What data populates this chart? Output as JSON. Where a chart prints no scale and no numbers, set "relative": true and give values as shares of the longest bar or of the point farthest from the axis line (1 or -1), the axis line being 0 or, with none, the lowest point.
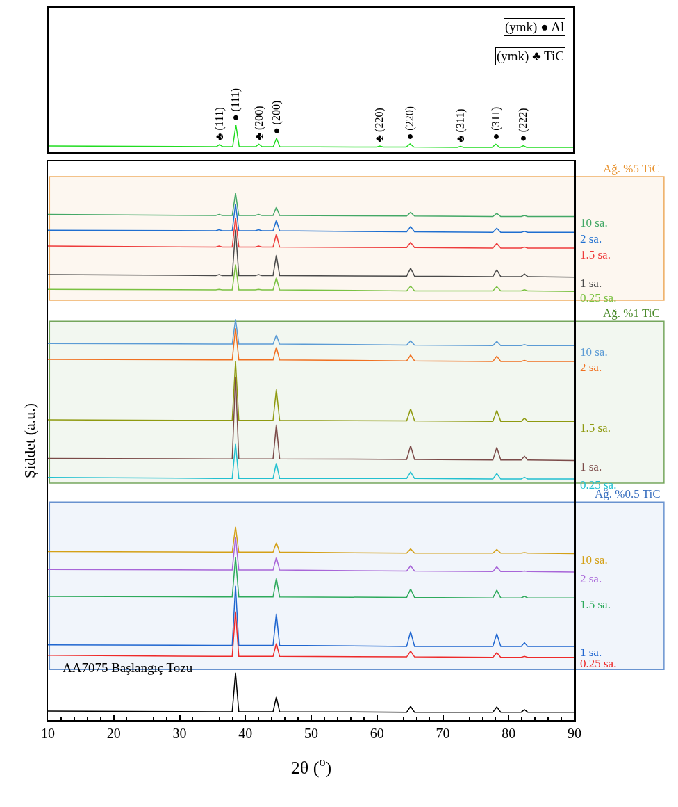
{
  "chart_data": [
    {
      "type": "line",
      "relative": true,
      "xlim": [
        10,
        90
      ],
      "x": [
        10,
        35.5,
        36,
        36.5,
        38,
        38.5,
        39,
        41.5,
        42,
        42.5,
        44.2,
        44.7,
        45.2,
        60,
        60.5,
        61,
        64.5,
        65.1,
        65.7,
        72.3,
        72.8,
        73.3,
        77.6,
        78.2,
        78.8,
        81.9,
        82.4,
        82.9,
        90
      ],
      "series": [
        {
          "color": "#22dd22",
          "values": [
            0.211,
            0.184,
            0.263,
            0.184,
            0.184,
            1.0,
            0.184,
            0.184,
            0.276,
            0.184,
            0.184,
            0.5,
            0.184,
            0.171,
            0.211,
            0.171,
            0.171,
            0.289,
            0.171,
            0.158,
            0.197,
            0.158,
            0.158,
            0.276,
            0.158,
            0.158,
            0.224,
            0.158,
            0.158
          ]
        }
      ],
      "annotations": [
        "(ymk) ● Al",
        "(ymk) ♣ TiC",
        {
          "text": "♣ (111)",
          "x": 36,
          "y": 0.263
        },
        {
          "text": "● (111)",
          "x": 38.5,
          "y": 1.0
        },
        {
          "text": "♣ (200)",
          "x": 42,
          "y": 0.276
        },
        {
          "text": "● (200)",
          "x": 44.7,
          "y": 0.5
        },
        {
          "text": "♣ (220)",
          "x": 60.5,
          "y": 0.211
        },
        {
          "text": "● (220)",
          "x": 65.1,
          "y": 0.289
        },
        {
          "text": "♣ (311)",
          "x": 72.8,
          "y": 0.197
        },
        {
          "text": "● (311)",
          "x": 78.2,
          "y": 0.276
        },
        {
          "text": "● (222)",
          "x": 82.4,
          "y": 0.224
        }
      ]
    },
    {
      "type": "line",
      "relative": true,
      "xlabel": "2θ ($^{o}$)",
      "ylabel": "Şiddet (a.u.)",
      "xlim": [
        10,
        90
      ],
      "xticks": [
        10,
        20,
        30,
        40,
        50,
        60,
        70,
        80,
        90
      ],
      "x": [
        10,
        35.5,
        36,
        36.5,
        38,
        38.5,
        39,
        41.5,
        42,
        42.5,
        44.2,
        44.7,
        45.2,
        64.5,
        65.1,
        65.7,
        77.6,
        78.2,
        78.8,
        81.9,
        82.4,
        82.9,
        90
      ],
      "series": [
        {
          "name": "10 sa.",
          "color": "#43a866",
          "values": [
            0.96,
            0.958,
            0.96,
            0.958,
            0.958,
            1.0,
            0.958,
            0.958,
            0.96,
            0.958,
            0.958,
            0.974,
            0.958,
            0.957,
            0.964,
            0.957,
            0.956,
            0.962,
            0.956,
            0.956,
            0.958,
            0.956,
            0.956
          ]
        },
        {
          "name": "2 sa.",
          "color": "#1f6fd0",
          "values": [
            0.93,
            0.929,
            0.931,
            0.929,
            0.929,
            0.98,
            0.929,
            0.929,
            0.931,
            0.929,
            0.929,
            0.949,
            0.929,
            0.927,
            0.937,
            0.927,
            0.926,
            0.934,
            0.926,
            0.926,
            0.928,
            0.926,
            0.926
          ]
        },
        {
          "name": "1.5 sa.",
          "color": "#ee3b3b",
          "values": [
            0.9,
            0.898,
            0.9,
            0.898,
            0.898,
            0.954,
            0.898,
            0.898,
            0.9,
            0.898,
            0.898,
            0.923,
            0.898,
            0.897,
            0.907,
            0.897,
            0.896,
            0.905,
            0.896,
            0.896,
            0.898,
            0.896,
            0.896
          ]
        },
        {
          "name": "1 sa.",
          "color": "#4a4a4a",
          "values": [
            0.846,
            0.844,
            0.846,
            0.844,
            0.844,
            0.931,
            0.844,
            0.844,
            0.846,
            0.844,
            0.844,
            0.883,
            0.844,
            0.843,
            0.858,
            0.843,
            0.842,
            0.855,
            0.842,
            0.842,
            0.847,
            0.842,
            0.841
          ]
        },
        {
          "name": "0.25 sa.",
          "color": "#7ac142",
          "values": [
            0.818,
            0.817,
            0.818,
            0.817,
            0.817,
            0.865,
            0.817,
            0.817,
            0.818,
            0.817,
            0.817,
            0.84,
            0.817,
            0.815,
            0.824,
            0.815,
            0.815,
            0.823,
            0.815,
            0.815,
            0.817,
            0.815,
            0.814
          ]
        },
        {
          "name": "10 sa.",
          "color": "#5b9bd5",
          "values": [
            0.715,
            0.714,
            0.714,
            0.714,
            0.714,
            0.761,
            0.714,
            0.714,
            0.714,
            0.714,
            0.714,
            0.731,
            0.714,
            0.712,
            0.72,
            0.712,
            0.711,
            0.719,
            0.711,
            0.711,
            0.713,
            0.711,
            0.711
          ]
        },
        {
          "name": "2 sa.",
          "color": "#f07020",
          "values": [
            0.685,
            0.684,
            0.684,
            0.684,
            0.684,
            0.744,
            0.684,
            0.684,
            0.684,
            0.684,
            0.684,
            0.708,
            0.684,
            0.682,
            0.693,
            0.682,
            0.681,
            0.691,
            0.681,
            0.681,
            0.683,
            0.681,
            0.681
          ]
        },
        {
          "name": "1.5 sa.",
          "color": "#8f9a10",
          "values": [
            0.57,
            0.569,
            0.569,
            0.569,
            0.569,
            0.681,
            0.569,
            0.569,
            0.569,
            0.569,
            0.569,
            0.628,
            0.569,
            0.568,
            0.591,
            0.568,
            0.567,
            0.588,
            0.567,
            0.567,
            0.573,
            0.567,
            0.567
          ]
        },
        {
          "name": "1 sa.",
          "color": "#7b4a48",
          "values": [
            0.497,
            0.496,
            0.496,
            0.496,
            0.496,
            0.652,
            0.496,
            0.496,
            0.496,
            0.496,
            0.496,
            0.561,
            0.496,
            0.495,
            0.521,
            0.495,
            0.494,
            0.518,
            0.494,
            0.494,
            0.501,
            0.494,
            0.493
          ]
        },
        {
          "name": "0.25 sa.",
          "color": "#22c0d0",
          "values": [
            0.461,
            0.459,
            0.459,
            0.459,
            0.459,
            0.524,
            0.459,
            0.459,
            0.459,
            0.459,
            0.459,
            0.488,
            0.459,
            0.459,
            0.471,
            0.459,
            0.458,
            0.468,
            0.458,
            0.458,
            0.461,
            0.458,
            0.458
          ]
        },
        {
          "name": "10 sa.",
          "color": "#d4a017",
          "values": [
            0.32,
            0.319,
            0.319,
            0.319,
            0.319,
            0.367,
            0.319,
            0.319,
            0.319,
            0.319,
            0.319,
            0.337,
            0.319,
            0.317,
            0.325,
            0.317,
            0.317,
            0.324,
            0.317,
            0.317,
            0.318,
            0.317,
            0.316
          ]
        },
        {
          "name": "2 sa.",
          "color": "#a865d8",
          "values": [
            0.286,
            0.285,
            0.285,
            0.285,
            0.285,
            0.348,
            0.285,
            0.285,
            0.285,
            0.285,
            0.285,
            0.309,
            0.285,
            0.283,
            0.293,
            0.283,
            0.282,
            0.291,
            0.282,
            0.282,
            0.283,
            0.282,
            0.281
          ]
        },
        {
          "name": "1.5 sa.",
          "color": "#2eaa5c",
          "values": [
            0.235,
            0.234,
            0.234,
            0.234,
            0.234,
            0.309,
            0.234,
            0.234,
            0.234,
            0.234,
            0.234,
            0.269,
            0.234,
            0.233,
            0.249,
            0.233,
            0.232,
            0.247,
            0.232,
            0.232,
            0.235,
            0.232,
            0.232
          ]
        },
        {
          "name": "1 sa.",
          "color": "#1f66d0",
          "values": [
            0.143,
            0.142,
            0.142,
            0.142,
            0.142,
            0.255,
            0.142,
            0.142,
            0.142,
            0.142,
            0.142,
            0.202,
            0.142,
            0.14,
            0.168,
            0.14,
            0.14,
            0.164,
            0.14,
            0.14,
            0.147,
            0.14,
            0.14
          ]
        },
        {
          "name": "0.25 sa.",
          "color": "#ee2a2a",
          "values": [
            0.123,
            0.121,
            0.121,
            0.121,
            0.121,
            0.206,
            0.121,
            0.121,
            0.121,
            0.121,
            0.121,
            0.146,
            0.121,
            0.12,
            0.131,
            0.12,
            0.119,
            0.128,
            0.119,
            0.119,
            0.121,
            0.119,
            0.119
          ]
        },
        {
          "color": "#000000",
          "values": [
            0.017,
            0.016,
            0.016,
            0.016,
            0.016,
            0.09,
            0.016,
            0.016,
            0.016,
            0.016,
            0.016,
            0.044,
            0.016,
            0.015,
            0.026,
            0.015,
            0.015,
            0.025,
            0.015,
            0.015,
            0.02,
            0.015,
            0.015
          ]
        }
      ],
      "bands": [
        {
          "axis": "y",
          "from": 0.797,
          "to": 1.032,
          "label": "Ağ. %5 TiC",
          "color": "#e8922e"
        },
        {
          "axis": "y",
          "from": 0.45,
          "to": 0.757,
          "label": "Ağ. %1 TiC",
          "color": "#4a8a2a"
        },
        {
          "axis": "y",
          "from": 0.096,
          "to": 0.414,
          "label": "Ağ. %0.5 TiC",
          "color": "#3a70c0"
        }
      ],
      "annotations": [
        "AA7075 Başlangıç Tozu"
      ]
    }
  ]
}
